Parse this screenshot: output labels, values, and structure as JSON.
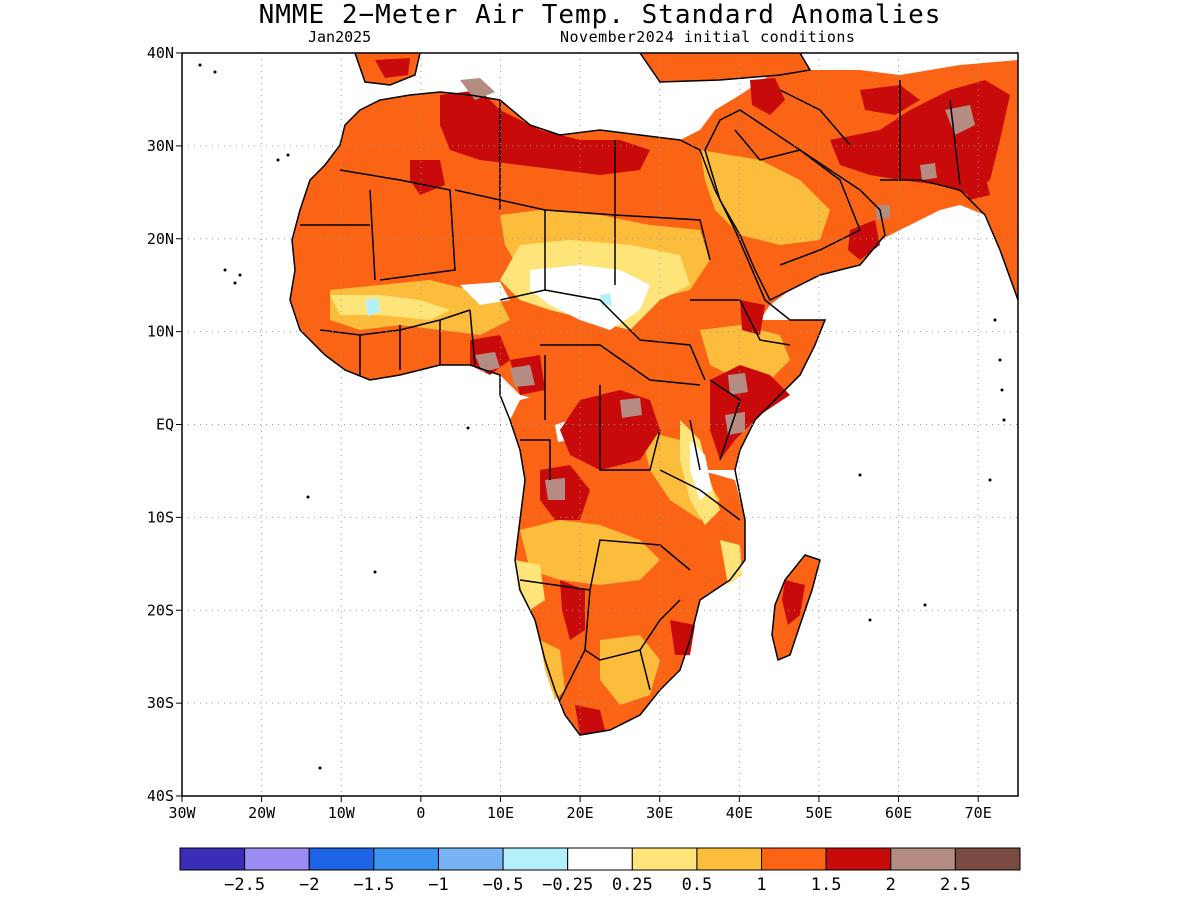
{
  "title": "NMME 2−Meter Air Temp. Standard Anomalies",
  "subtitle_left": "Jan2025",
  "subtitle_right": "November2024 initial conditions",
  "map": {
    "lon_range": [
      -30,
      75
    ],
    "lat_range": [
      -40,
      40
    ],
    "lat_ticks": [
      {
        "value": 40,
        "label": "40N"
      },
      {
        "value": 30,
        "label": "30N"
      },
      {
        "value": 20,
        "label": "20N"
      },
      {
        "value": 10,
        "label": "10N"
      },
      {
        "value": 0,
        "label": "EQ"
      },
      {
        "value": -10,
        "label": "10S"
      },
      {
        "value": -20,
        "label": "20S"
      },
      {
        "value": -30,
        "label": "30S"
      },
      {
        "value": -40,
        "label": "40S"
      }
    ],
    "lon_ticks": [
      {
        "value": -30,
        "label": "30W"
      },
      {
        "value": -20,
        "label": "20W"
      },
      {
        "value": -10,
        "label": "10W"
      },
      {
        "value": 0,
        "label": "0"
      },
      {
        "value": 10,
        "label": "10E"
      },
      {
        "value": 20,
        "label": "20E"
      },
      {
        "value": 30,
        "label": "30E"
      },
      {
        "value": 40,
        "label": "40E"
      },
      {
        "value": 50,
        "label": "50E"
      },
      {
        "value": 60,
        "label": "60E"
      },
      {
        "value": 70,
        "label": "70E"
      }
    ]
  },
  "colorbar": {
    "colors": [
      "#3a2db8",
      "#9a8cf2",
      "#1e64e6",
      "#3c94f0",
      "#78b4f4",
      "#b4f0fa",
      "#ffffff",
      "#ffe47a",
      "#fcbc3c",
      "#fa6414",
      "#c80a0a",
      "#b48c82",
      "#7a4a40"
    ],
    "labels": [
      "−2.5",
      "−2",
      "−1.5",
      "−1",
      "−0.5",
      "−0.25",
      "0.25",
      "0.5",
      "1",
      "1.5",
      "2",
      "2.5"
    ]
  }
}
